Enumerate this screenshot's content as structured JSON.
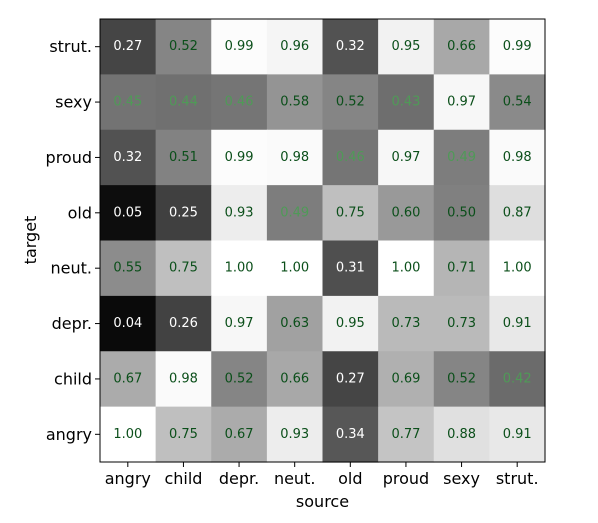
{
  "chart_data": {
    "type": "heatmap",
    "title": "",
    "xlabel": "source",
    "ylabel": "target",
    "x_categories": [
      "angry",
      "child",
      "depr.",
      "neut.",
      "old",
      "proud",
      "sexy",
      "strut."
    ],
    "y_categories": [
      "strut.",
      "sexy",
      "proud",
      "old",
      "neut.",
      "depr.",
      "child",
      "angry"
    ],
    "values": [
      [
        0.27,
        0.52,
        0.99,
        0.96,
        0.32,
        0.95,
        0.66,
        0.99
      ],
      [
        0.45,
        0.44,
        0.46,
        0.58,
        0.52,
        0.43,
        0.97,
        0.54
      ],
      [
        0.32,
        0.51,
        0.99,
        0.98,
        0.46,
        0.97,
        0.49,
        0.98
      ],
      [
        0.05,
        0.25,
        0.93,
        0.49,
        0.75,
        0.6,
        0.5,
        0.87
      ],
      [
        0.55,
        0.75,
        1.0,
        1.0,
        0.31,
        1.0,
        0.71,
        1.0
      ],
      [
        0.04,
        0.26,
        0.97,
        0.63,
        0.95,
        0.73,
        0.73,
        0.91
      ],
      [
        0.67,
        0.98,
        0.52,
        0.66,
        0.27,
        0.69,
        0.52,
        0.42
      ],
      [
        1.0,
        0.75,
        0.67,
        0.93,
        0.34,
        0.77,
        0.88,
        0.91
      ]
    ],
    "colormap": "grayscale (low = black, high = white)",
    "value_range": [
      0,
      1
    ],
    "label_colors": {
      "on_dark": "#ffffff",
      "mid": "#4f9a57",
      "on_light": "#0b4f1a"
    },
    "grid": false,
    "legend": "none"
  }
}
